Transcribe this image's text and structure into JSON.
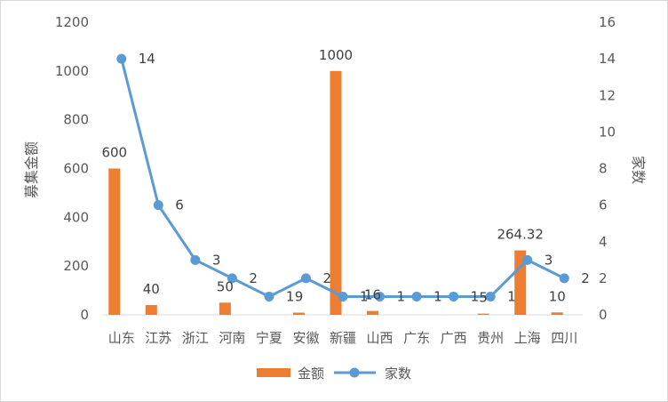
{
  "chart_data": {
    "type": "bar",
    "categories": [
      "山东",
      "江苏",
      "浙江",
      "河南",
      "宁夏",
      "安徽",
      "新疆",
      "山西",
      "广东",
      "广西",
      "贵州",
      "上海",
      "四川"
    ],
    "series": [
      {
        "name": "金额",
        "type": "bar",
        "axis": "left",
        "color": "#ED7D31",
        "values": [
          600,
          40,
          0,
          50,
          0,
          9,
          1000,
          16,
          0,
          0,
          5,
          264.32,
          10
        ],
        "labels": [
          "600",
          "40",
          "",
          "50",
          "",
          "9",
          "1000",
          "16",
          "",
          "",
          "5",
          "264.32",
          "10"
        ]
      },
      {
        "name": "家数",
        "type": "line",
        "axis": "right",
        "color": "#5B9BD5",
        "values": [
          14,
          6,
          3,
          2,
          1,
          2,
          1,
          1,
          1,
          1,
          1,
          3,
          2
        ],
        "labels": [
          "14",
          "6",
          "3",
          "2",
          "1",
          "2",
          "1",
          "1",
          "1",
          "1",
          "1",
          "3",
          "2"
        ]
      }
    ],
    "ylabel_left": "募集金额",
    "ylabel_right": "家数",
    "ylim_left": [
      0,
      1200
    ],
    "yticks_left": [
      "0",
      "200",
      "400",
      "600",
      "800",
      "1000",
      "1200"
    ],
    "ylim_right": [
      0,
      16
    ],
    "yticks_right": [
      "0",
      "2",
      "4",
      "6",
      "8",
      "10",
      "12",
      "14",
      "16"
    ],
    "grid": false,
    "legend_position": "bottom"
  }
}
